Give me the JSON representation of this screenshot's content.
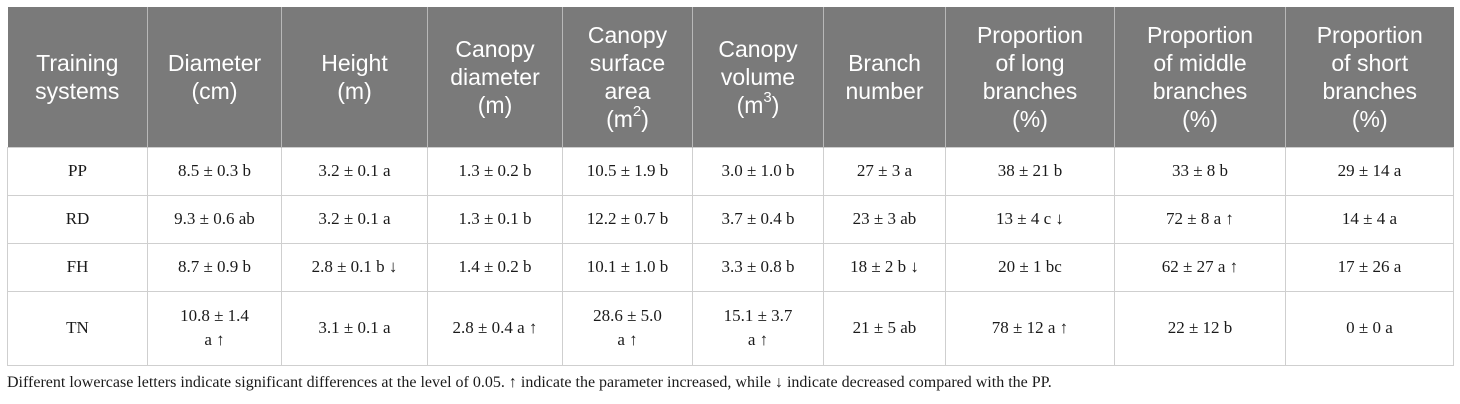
{
  "table": {
    "headers": [
      {
        "lines": [
          "Training",
          "systems"
        ]
      },
      {
        "lines": [
          "Diameter",
          "(cm)"
        ]
      },
      {
        "lines": [
          "Height",
          "(m)"
        ]
      },
      {
        "lines": [
          "Canopy",
          "diameter",
          "(m)"
        ]
      },
      {
        "lines": [
          "Canopy",
          "surface",
          "area"
        ],
        "unit": "(m",
        "sup": "2",
        "unit_end": ")"
      },
      {
        "lines": [
          "Canopy",
          "volume"
        ],
        "unit": "(m",
        "sup": "3",
        "unit_end": ")"
      },
      {
        "lines": [
          "Branch",
          "number"
        ]
      },
      {
        "lines": [
          "Proportion",
          "of long",
          "branches",
          "(%)"
        ]
      },
      {
        "lines": [
          "Proportion",
          "of middle",
          "branches",
          "(%)"
        ]
      },
      {
        "lines": [
          "Proportion",
          "of short",
          "branches",
          "(%)"
        ]
      }
    ],
    "rows": [
      [
        "PP",
        "8.5 ± 0.3 b",
        "3.2 ± 0.1 a",
        "1.3 ± 0.2 b",
        "10.5 ± 1.9 b",
        "3.0 ± 1.0 b",
        "27 ± 3 a",
        "38 ± 21 b",
        "33 ± 8 b",
        "29 ± 14 a"
      ],
      [
        "RD",
        "9.3 ± 0.6 ab",
        "3.2 ± 0.1 a",
        "1.3 ± 0.1 b",
        "12.2 ± 0.7 b",
        "3.7 ± 0.4 b",
        "23 ± 3 ab",
        "13 ± 4 c ↓",
        "72 ± 8 a ↑",
        "14 ± 4 a"
      ],
      [
        "FH",
        "8.7 ± 0.9 b",
        "2.8 ± 0.1 b ↓",
        "1.4 ± 0.2 b",
        "10.1 ± 1.0 b",
        "3.3 ± 0.8 b",
        "18 ± 2 b ↓",
        "20 ± 1 bc",
        "62 ± 27 a ↑",
        "17 ± 26 a"
      ],
      [
        [
          "TN"
        ],
        [
          "10.8 ± 1.4",
          "a ↑"
        ],
        [
          "3.1 ± 0.1 a"
        ],
        [
          "2.8 ± 0.4 a ↑"
        ],
        [
          "28.6 ± 5.0",
          "a ↑"
        ],
        [
          "15.1 ± 3.7",
          "a ↑"
        ],
        [
          "21 ± 5 ab"
        ],
        [
          "78 ± 12 a ↑"
        ],
        [
          "22 ± 12 b"
        ],
        [
          "0 ± 0 a"
        ]
      ]
    ]
  },
  "footnote": "Different lowercase letters indicate significant differences at the level of 0.05. ↑ indicate the parameter increased, while ↓ indicate decreased compared with the PP."
}
